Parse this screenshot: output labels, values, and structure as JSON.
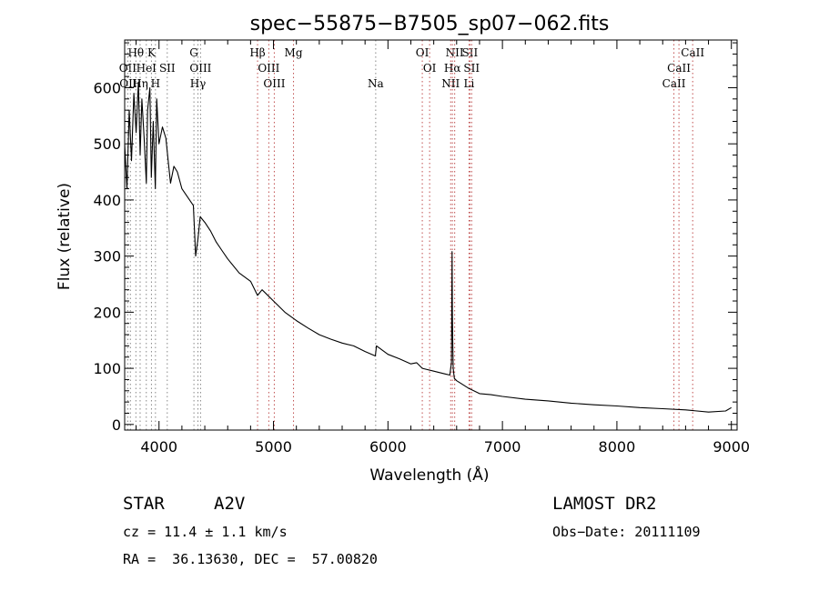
{
  "chart_data": {
    "type": "line",
    "title": "spec−55875−B7505_sp07−062.fits",
    "xlabel": "Wavelength (Å)",
    "ylabel": "Flux (relative)",
    "xlim": [
      3700,
      9050
    ],
    "ylim": [
      -10,
      685
    ],
    "xticks": [
      4000,
      5000,
      6000,
      7000,
      8000,
      9000
    ],
    "yticks": [
      0,
      100,
      200,
      300,
      400,
      500,
      600
    ],
    "grid": false,
    "series": [
      {
        "x": [
          3700,
          3720,
          3740,
          3760,
          3780,
          3800,
          3820,
          3835,
          3850,
          3870,
          3889,
          3900,
          3920,
          3933,
          3950,
          3968,
          3980,
          4000,
          4030,
          4060,
          4080,
          4101,
          4130,
          4160,
          4200,
          4250,
          4300,
          4320,
          4340,
          4360,
          4400,
          4450,
          4500,
          4550,
          4600,
          4700,
          4800,
          4861,
          4900,
          5000,
          5100,
          5200,
          5300,
          5400,
          5500,
          5600,
          5700,
          5800,
          5890,
          5900,
          6000,
          6100,
          6200,
          6250,
          6300,
          6400,
          6500,
          6540,
          6555,
          6560,
          6563,
          6566,
          6570,
          6580,
          6600,
          6700,
          6800,
          6900,
          7000,
          7200,
          7400,
          7600,
          7800,
          8000,
          8200,
          8400,
          8600,
          8800,
          8950,
          9000
        ],
        "y": [
          500,
          420,
          560,
          470,
          590,
          520,
          610,
          480,
          580,
          510,
          430,
          560,
          600,
          440,
          540,
          420,
          580,
          500,
          530,
          510,
          470,
          430,
          460,
          450,
          420,
          405,
          390,
          300,
          330,
          370,
          360,
          345,
          325,
          310,
          295,
          270,
          255,
          230,
          240,
          220,
          200,
          185,
          172,
          160,
          152,
          145,
          140,
          130,
          122,
          140,
          125,
          117,
          108,
          110,
          100,
          95,
          90,
          88,
          110,
          308,
          200,
          150,
          100,
          82,
          78,
          65,
          55,
          53,
          50,
          45,
          42,
          38,
          35,
          33,
          30,
          28,
          26,
          22,
          24,
          30
        ]
      }
    ],
    "spectral_lines": [
      {
        "name": "Hθ",
        "wave": 3798,
        "row": 0,
        "color": "#888888"
      },
      {
        "name": "K",
        "wave": 3934,
        "row": 0,
        "color": "#888888"
      },
      {
        "name": "G",
        "wave": 4305,
        "row": 0,
        "color": "#888888"
      },
      {
        "name": "Hβ",
        "wave": 4861,
        "row": 0,
        "color": "#c05050"
      },
      {
        "name": "Mg",
        "wave": 5175,
        "row": 0,
        "color": "#c05050"
      },
      {
        "name": "OI",
        "wave": 6300,
        "row": 0,
        "color": "#c05050"
      },
      {
        "name": "NII",
        "wave": 6583,
        "row": 0,
        "color": "#c05050"
      },
      {
        "name": "SII",
        "wave": 6716,
        "row": 0,
        "color": "#c05050"
      },
      {
        "name": "CaII",
        "wave": 8662,
        "row": 0,
        "color": "#c05050"
      },
      {
        "name": "OII",
        "wave": 3727,
        "row": 1,
        "color": "#888888"
      },
      {
        "name": "HeI",
        "wave": 3889,
        "row": 1,
        "color": "#888888"
      },
      {
        "name": "SII",
        "wave": 4072,
        "row": 1,
        "color": "#888888"
      },
      {
        "name": "OIII",
        "wave": 4363,
        "row": 1,
        "color": "#888888"
      },
      {
        "name": "OIII",
        "wave": 4959,
        "row": 1,
        "color": "#c05050"
      },
      {
        "name": "OI",
        "wave": 6364,
        "row": 1,
        "color": "#c05050"
      },
      {
        "name": "Hα",
        "wave": 6563,
        "row": 1,
        "color": "#c05050"
      },
      {
        "name": "SII",
        "wave": 6731,
        "row": 1,
        "color": "#c05050"
      },
      {
        "name": "CaII",
        "wave": 8542,
        "row": 1,
        "color": "#c05050"
      },
      {
        "name": "OIII",
        "wave": 3750,
        "row": 2,
        "color": "#888888"
      },
      {
        "name": "Hη",
        "wave": 3835,
        "row": 2,
        "color": "#888888"
      },
      {
        "name": "H",
        "wave": 3969,
        "row": 2,
        "color": "#888888"
      },
      {
        "name": "Hγ",
        "wave": 4340,
        "row": 2,
        "color": "#888888"
      },
      {
        "name": "OIII",
        "wave": 5007,
        "row": 2,
        "color": "#c05050"
      },
      {
        "name": "Na",
        "wave": 5893,
        "row": 2,
        "color": "#888888"
      },
      {
        "name": "NII",
        "wave": 6548,
        "row": 2,
        "color": "#c05050"
      },
      {
        "name": "Li",
        "wave": 6708,
        "row": 2,
        "color": "#c05050"
      },
      {
        "name": "CaII",
        "wave": 8498,
        "row": 2,
        "color": "#c05050"
      }
    ]
  },
  "info": {
    "class": "STAR",
    "subclass": "A2V",
    "survey": "LAMOST DR2",
    "cz": "cz = 11.4 ± 1.1 km/s",
    "obs_date": "Obs−Date: 20111109",
    "radec": "RA =  36.13630, DEC =  57.00820"
  }
}
